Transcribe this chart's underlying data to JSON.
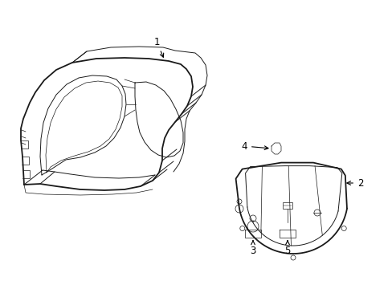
{
  "background_color": "#ffffff",
  "line_color": "#1a1a1a",
  "lw_outer": 1.3,
  "lw_inner": 0.7,
  "lw_thin": 0.5,
  "label_fontsize": 8.5,
  "arrow_color": "#000000"
}
